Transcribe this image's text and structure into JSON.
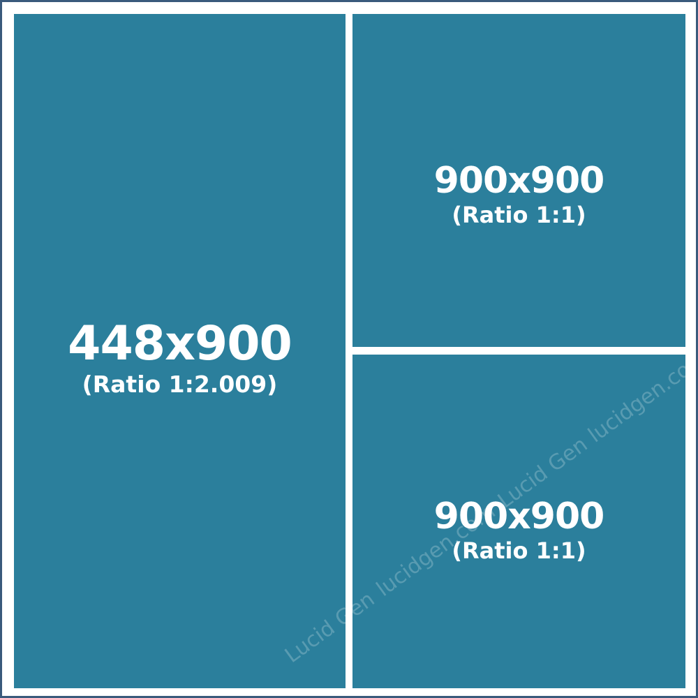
{
  "colors": {
    "panel": "#2b7f9c",
    "frame_border": "#3a5a7c",
    "gap": "#ffffff",
    "text": "#ffffff"
  },
  "panels": [
    {
      "size": "448x900",
      "ratio": "(Ratio 1:2.009)"
    },
    {
      "size": "900x900",
      "ratio": "(Ratio 1:1)"
    },
    {
      "size": "900x900",
      "ratio": "(Ratio 1:1)"
    }
  ],
  "watermark": {
    "brand": "Lucid Gen",
    "domain": "lucidgen.com"
  }
}
